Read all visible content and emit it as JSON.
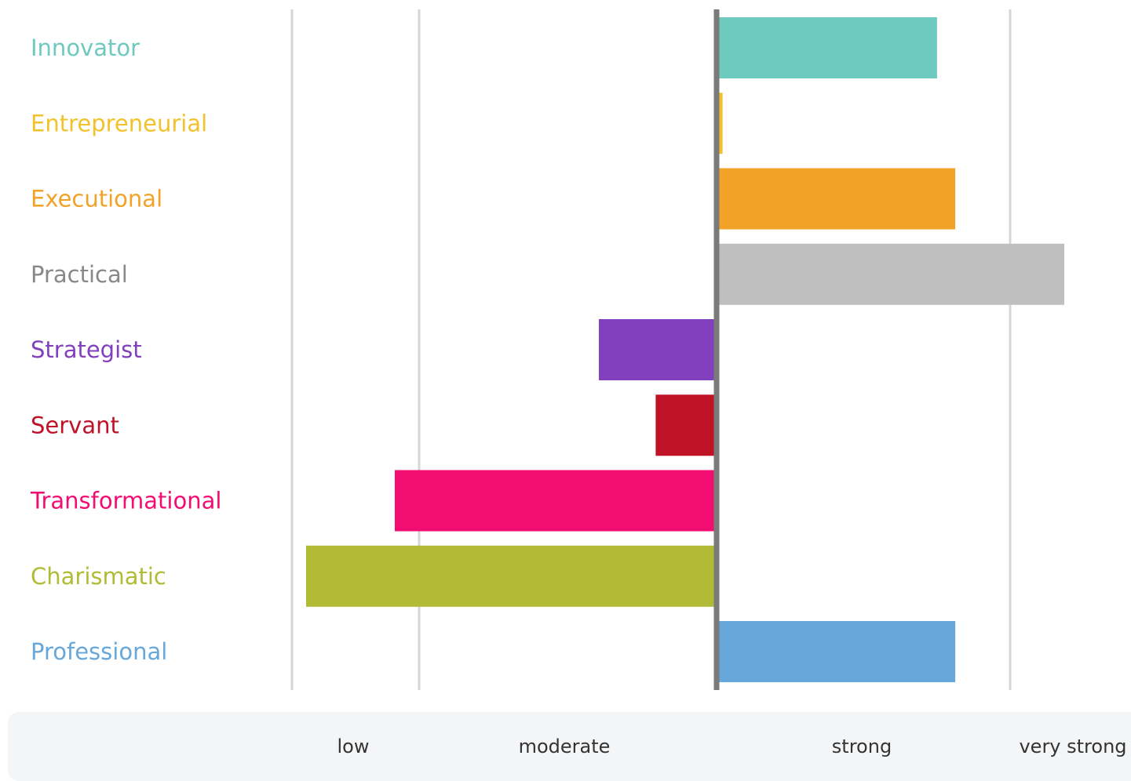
{
  "chart_data": {
    "type": "bar",
    "orientation": "horizontal",
    "baseline": 0,
    "xlim": [
      -2.3,
      1.9
    ],
    "grid": true,
    "categories": [
      "Innovator",
      "Entrepreneurial",
      "Executional",
      "Practical",
      "Strategist",
      "Servant",
      "Transformational",
      "Charismatic",
      "Professional"
    ],
    "values": [
      1.2,
      0.02,
      1.3,
      1.9,
      -0.65,
      -0.33,
      -1.8,
      -2.3,
      1.3
    ],
    "colors": [
      "#6ec9bf",
      "#f3c22b",
      "#f2a226",
      "#bfbfbf",
      "#823fbe",
      "#c01226",
      "#f20d72",
      "#b1bb35",
      "#67a7da"
    ],
    "scale_labels": [
      "low",
      "moderate",
      "strong",
      "very strong"
    ]
  }
}
